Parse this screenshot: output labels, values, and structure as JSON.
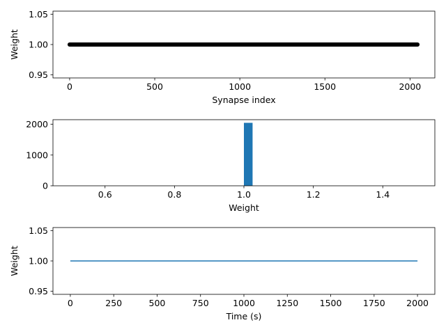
{
  "chart_data": [
    {
      "type": "scatter",
      "xlabel": "Synapse index",
      "ylabel": "Weight",
      "xlim": [
        -98,
        2146
      ],
      "ylim": [
        0.945,
        1.055
      ],
      "xticks": [
        0,
        500,
        1000,
        1500,
        2000
      ],
      "xtick_labels": [
        "0",
        "500",
        "1000",
        "1500",
        "2000"
      ],
      "yticks": [
        0.95,
        1.0,
        1.05
      ],
      "ytick_labels": [
        "0.95",
        "1.00",
        "1.05"
      ],
      "series": [
        {
          "x_range": [
            0,
            2047
          ],
          "count": 2048,
          "y": 1.0,
          "color": "#000000"
        }
      ],
      "grid": false
    },
    {
      "type": "bar",
      "xlabel": "Weight",
      "ylabel": "",
      "xlim": [
        0.45,
        1.55
      ],
      "ylim": [
        0,
        2150
      ],
      "xticks": [
        0.6,
        0.8,
        1.0,
        1.2,
        1.4
      ],
      "xtick_labels": [
        "0.6",
        "0.8",
        "1.0",
        "1.2",
        "1.4"
      ],
      "yticks": [
        0,
        1000,
        2000
      ],
      "ytick_labels": [
        "0",
        "1000",
        "2000"
      ],
      "bars": [
        {
          "x0": 1.0,
          "x1": 1.025,
          "value": 2048,
          "color": "#1f77b4"
        }
      ],
      "grid": false
    },
    {
      "type": "line",
      "xlabel": "Time (s)",
      "ylabel": "Weight",
      "xlim": [
        -100,
        2100
      ],
      "ylim": [
        0.945,
        1.055
      ],
      "xticks": [
        0,
        250,
        500,
        750,
        1000,
        1250,
        1500,
        1750,
        2000
      ],
      "xtick_labels": [
        "0",
        "250",
        "500",
        "750",
        "1000",
        "1250",
        "1500",
        "1750",
        "2000"
      ],
      "yticks": [
        0.95,
        1.0,
        1.05
      ],
      "ytick_labels": [
        "0.95",
        "1.00",
        "1.05"
      ],
      "series": [
        {
          "x": [
            0,
            2000
          ],
          "y": [
            1.0,
            1.0
          ],
          "color": "#1f77b4"
        }
      ],
      "grid": false
    }
  ]
}
